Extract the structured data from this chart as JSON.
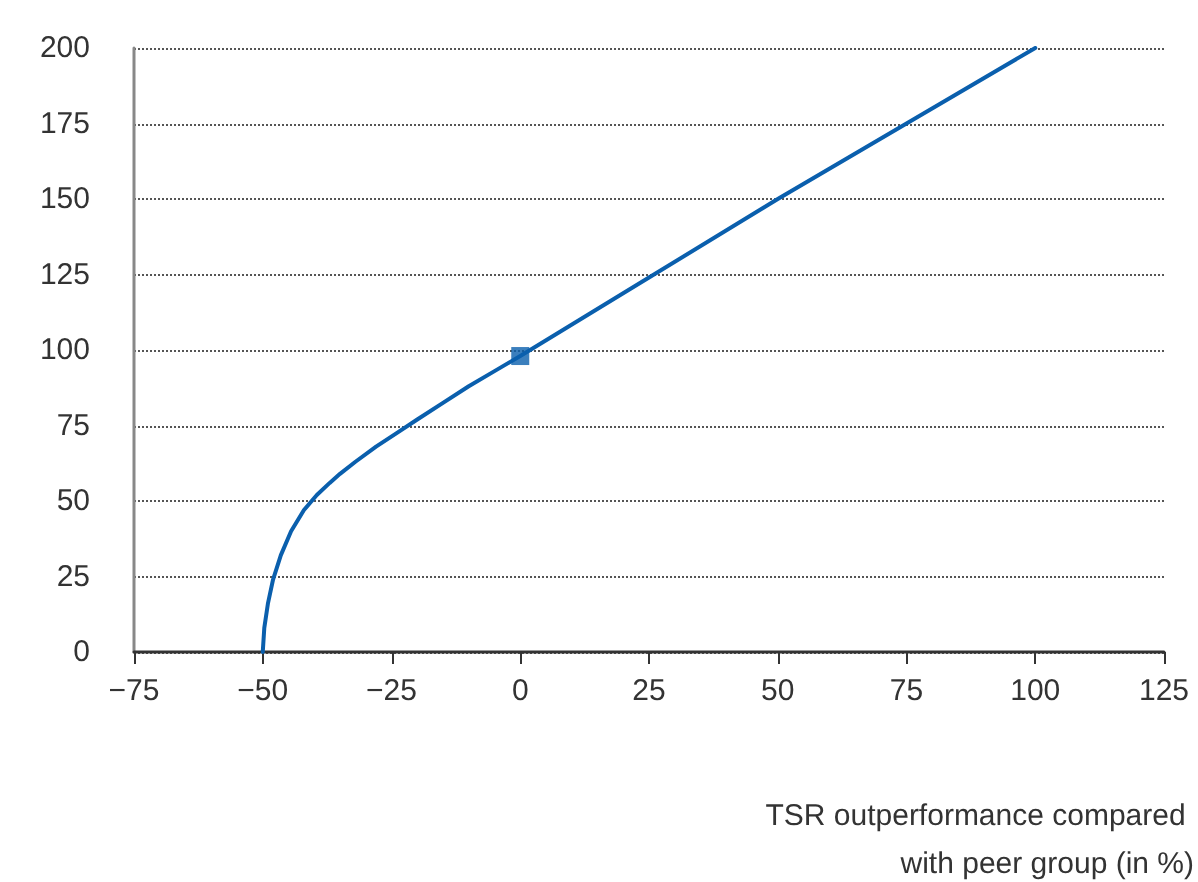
{
  "chart_data": {
    "type": "line",
    "xlabel": "TSR outperformance compared with peer group (in %)",
    "series": [
      {
        "color": "#0a5fad",
        "marker": "none",
        "x": [
          -50,
          -49.7,
          -49,
          -48,
          -46.5,
          -44.5,
          -42,
          -39.5,
          -37,
          -35,
          -32,
          -28,
          -24,
          -20,
          -15,
          -10,
          -5,
          0,
          25,
          50,
          75,
          100
        ],
        "values": [
          0,
          8,
          16,
          24,
          32,
          40,
          47,
          52,
          56,
          59,
          63,
          68,
          72.5,
          77,
          82.5,
          88,
          93,
          98,
          124,
          150,
          175,
          200
        ]
      },
      {
        "type": "scatter",
        "color": "#0a5fad",
        "marker": "square",
        "x": [
          0
        ],
        "values": [
          98
        ]
      }
    ],
    "xlim": [
      -75,
      125
    ],
    "xticks": [
      {
        "value": -75,
        "label": "−75"
      },
      {
        "value": -50,
        "label": "−50"
      },
      {
        "value": -25,
        "label": "−25"
      },
      0,
      25,
      50,
      75,
      100,
      125
    ],
    "ylim": [
      0,
      200
    ],
    "yticks": [
      0,
      25,
      50,
      75,
      100,
      125,
      150,
      175,
      200
    ],
    "grid": "y"
  }
}
